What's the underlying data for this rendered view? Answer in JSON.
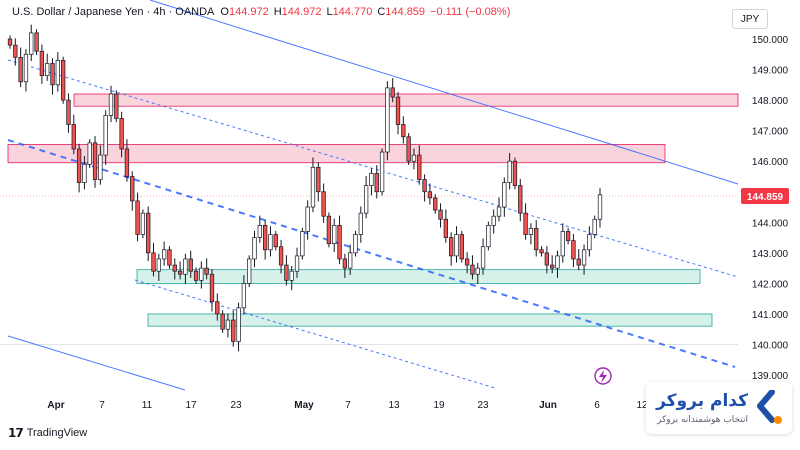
{
  "header": {
    "symbol": "U.S. Dollar / Japanese Yen · 4h · OANDA",
    "o_label": "O",
    "o_value": "144.972",
    "h_label": "H",
    "h_value": "144.972",
    "l_label": "L",
    "l_value": "144.770",
    "c_label": "C",
    "c_value": "144.859",
    "change": "−0.111 (−0.08%)"
  },
  "currency_button": "JPY",
  "brand": {
    "tradingview": "TradingView",
    "watermark_title": "کدام بروکر",
    "watermark_subtitle": "انتخاب هوشمندانه بروکر"
  },
  "colors": {
    "up": "#26a69a",
    "down": "#ef5350",
    "candle": "#131722",
    "resistance_zone": "#f8c6d0",
    "support_zone": "#c8ece2",
    "channel": "#2962ff",
    "last_price": "#f23645"
  },
  "chart_data": {
    "type": "candlestick",
    "y_axis": {
      "ticks": [
        "150.000",
        "149.000",
        "148.000",
        "147.000",
        "146.000",
        "145.000",
        "144.000",
        "143.000",
        "142.000",
        "141.000",
        "140.000",
        "139.000"
      ],
      "range": [
        138.6,
        150.6
      ]
    },
    "x_axis": {
      "ticks": [
        "Apr",
        "7",
        "11",
        "17",
        "23",
        "May",
        "7",
        "13",
        "19",
        "23",
        "Jun",
        "6",
        "12"
      ]
    },
    "last_price": "144.859",
    "zones": [
      {
        "kind": "resistance",
        "low": 147.8,
        "high": 148.2
      },
      {
        "kind": "resistance",
        "low": 145.95,
        "high": 146.55
      },
      {
        "kind": "support",
        "low": 142.0,
        "high": 142.45
      },
      {
        "kind": "support",
        "low": 140.6,
        "high": 141.0
      }
    ],
    "close_path": [
      149.8,
      149.4,
      148.6,
      149.5,
      150.2,
      149.6,
      148.8,
      149.2,
      148.5,
      149.3,
      148.0,
      147.2,
      146.4,
      145.3,
      145.9,
      146.6,
      145.4,
      146.2,
      147.5,
      148.2,
      147.4,
      146.4,
      145.5,
      144.7,
      143.6,
      144.3,
      143.0,
      142.4,
      142.8,
      143.1,
      142.6,
      142.4,
      142.3,
      142.8,
      142.4,
      142.1,
      142.5,
      142.3,
      141.4,
      141.0,
      140.5,
      140.8,
      140.1,
      141.2,
      142.0,
      142.8,
      143.5,
      143.9,
      143.1,
      143.6,
      143.2,
      142.6,
      142.1,
      142.4,
      142.9,
      143.7,
      144.5,
      145.8,
      145.0,
      144.2,
      143.3,
      143.9,
      142.8,
      142.5,
      143.0,
      143.6,
      144.3,
      145.2,
      145.6,
      145.0,
      146.3,
      148.4,
      148.1,
      147.2,
      146.8,
      146.0,
      146.2,
      145.4,
      145.0,
      144.8,
      144.4,
      144.1,
      143.5,
      142.9,
      143.6,
      142.8,
      142.6,
      142.3,
      142.5,
      143.2,
      143.9,
      144.2,
      144.5,
      145.3,
      146.0,
      145.2,
      144.3,
      143.6,
      143.8,
      143.1,
      143.0,
      142.6,
      142.5,
      142.9,
      143.7,
      143.4,
      142.8,
      142.6,
      143.1,
      143.6,
      144.1,
      144.9
    ]
  }
}
